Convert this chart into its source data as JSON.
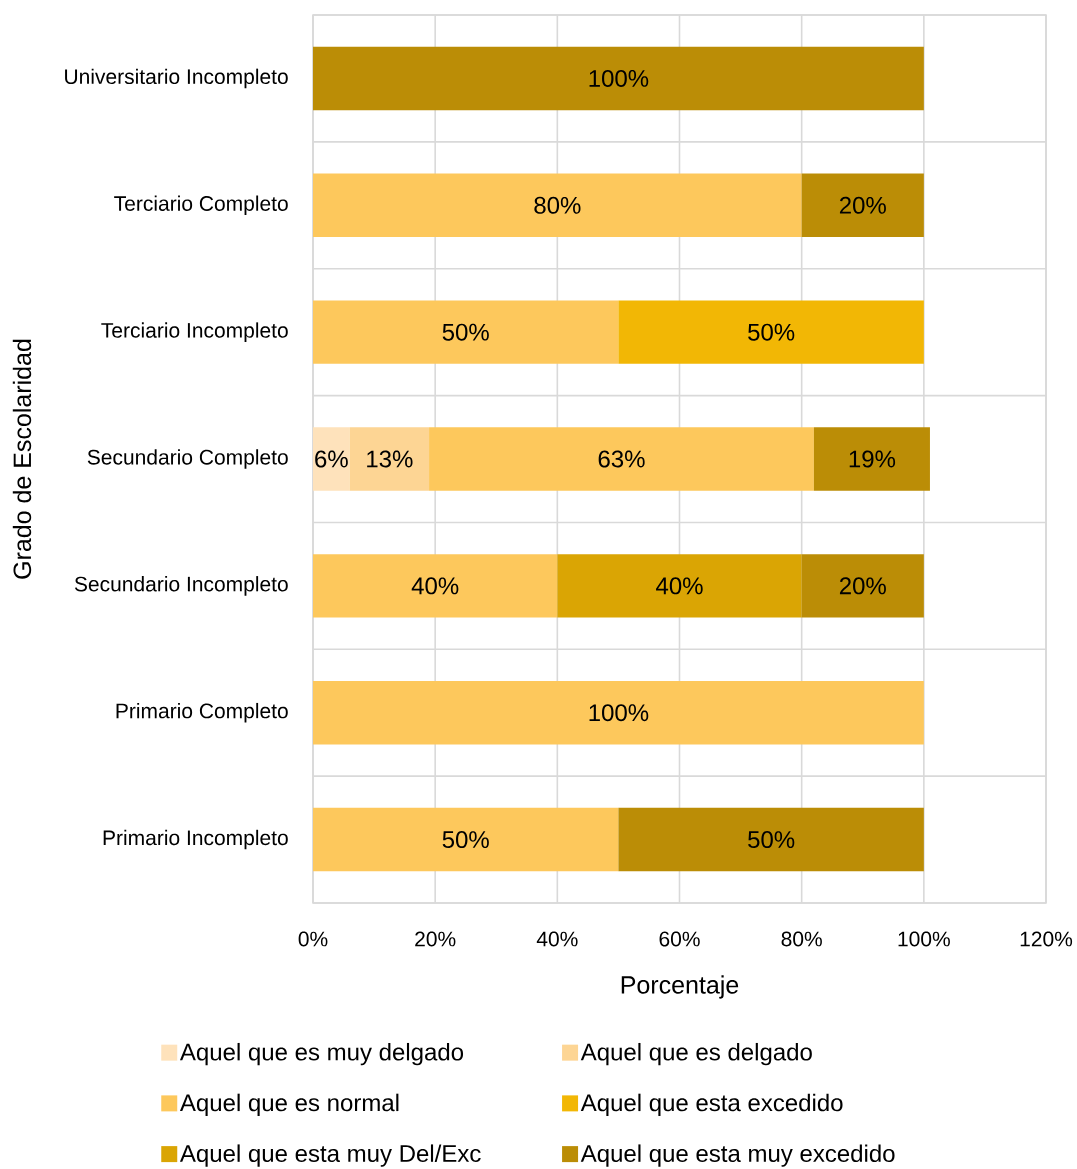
{
  "chart_data": {
    "type": "bar",
    "orientation": "horizontal",
    "stacked": true,
    "categories": [
      "Universitario Incompleto",
      "Terciario Completo",
      "Terciario Incompleto",
      "Secundario Completo",
      "Secundario Incompleto",
      "Primario Completo",
      "Primario Incompleto"
    ],
    "series": [
      {
        "name": "Aquel que es muy delgado",
        "color": "#fee2bb",
        "values": [
          null,
          null,
          null,
          6,
          null,
          null,
          null
        ],
        "value_labels": [
          null,
          null,
          null,
          "6%",
          null,
          null,
          null
        ]
      },
      {
        "name": "Aquel que es delgado",
        "color": "#fdd594",
        "values": [
          null,
          null,
          null,
          13,
          null,
          null,
          null
        ],
        "value_labels": [
          null,
          null,
          null,
          "13%",
          null,
          null,
          null
        ]
      },
      {
        "name": "Aquel que es normal",
        "color": "#fdc85c",
        "values": [
          null,
          80,
          50,
          63,
          40,
          100,
          50
        ],
        "value_labels": [
          null,
          "80%",
          "50%",
          "63%",
          "40%",
          "100%",
          "50%"
        ]
      },
      {
        "name": "Aquel que esta excedido",
        "color": "#f2b705",
        "values": [
          null,
          null,
          50,
          null,
          null,
          null,
          null
        ],
        "value_labels": [
          null,
          null,
          "50%",
          null,
          null,
          null,
          null
        ]
      },
      {
        "name": "Aquel que esta muy Del/Exc",
        "color": "#daa504",
        "values": [
          null,
          null,
          null,
          null,
          40,
          null,
          null
        ],
        "value_labels": [
          null,
          null,
          null,
          null,
          "40%",
          null,
          null
        ]
      },
      {
        "name": "Aquel que esta muy excedido",
        "color": "#bb8d06",
        "values": [
          100,
          20,
          null,
          19,
          20,
          null,
          50
        ],
        "value_labels": [
          "100%",
          "20%",
          null,
          "19%",
          "20%",
          null,
          "50%"
        ]
      }
    ],
    "xlabel": "Porcentaje",
    "ylabel": "Grado de Escolaridad",
    "xlim": [
      0,
      120
    ],
    "xticks": [
      {
        "value": 0,
        "label": "0%"
      },
      {
        "value": 20,
        "label": "20%"
      },
      {
        "value": 40,
        "label": "40%"
      },
      {
        "value": 60,
        "label": "60%"
      },
      {
        "value": 80,
        "label": "80%"
      },
      {
        "value": 100,
        "label": "100%"
      },
      {
        "value": 120,
        "label": "120%"
      }
    ],
    "grid": true,
    "legend": "bottom"
  }
}
